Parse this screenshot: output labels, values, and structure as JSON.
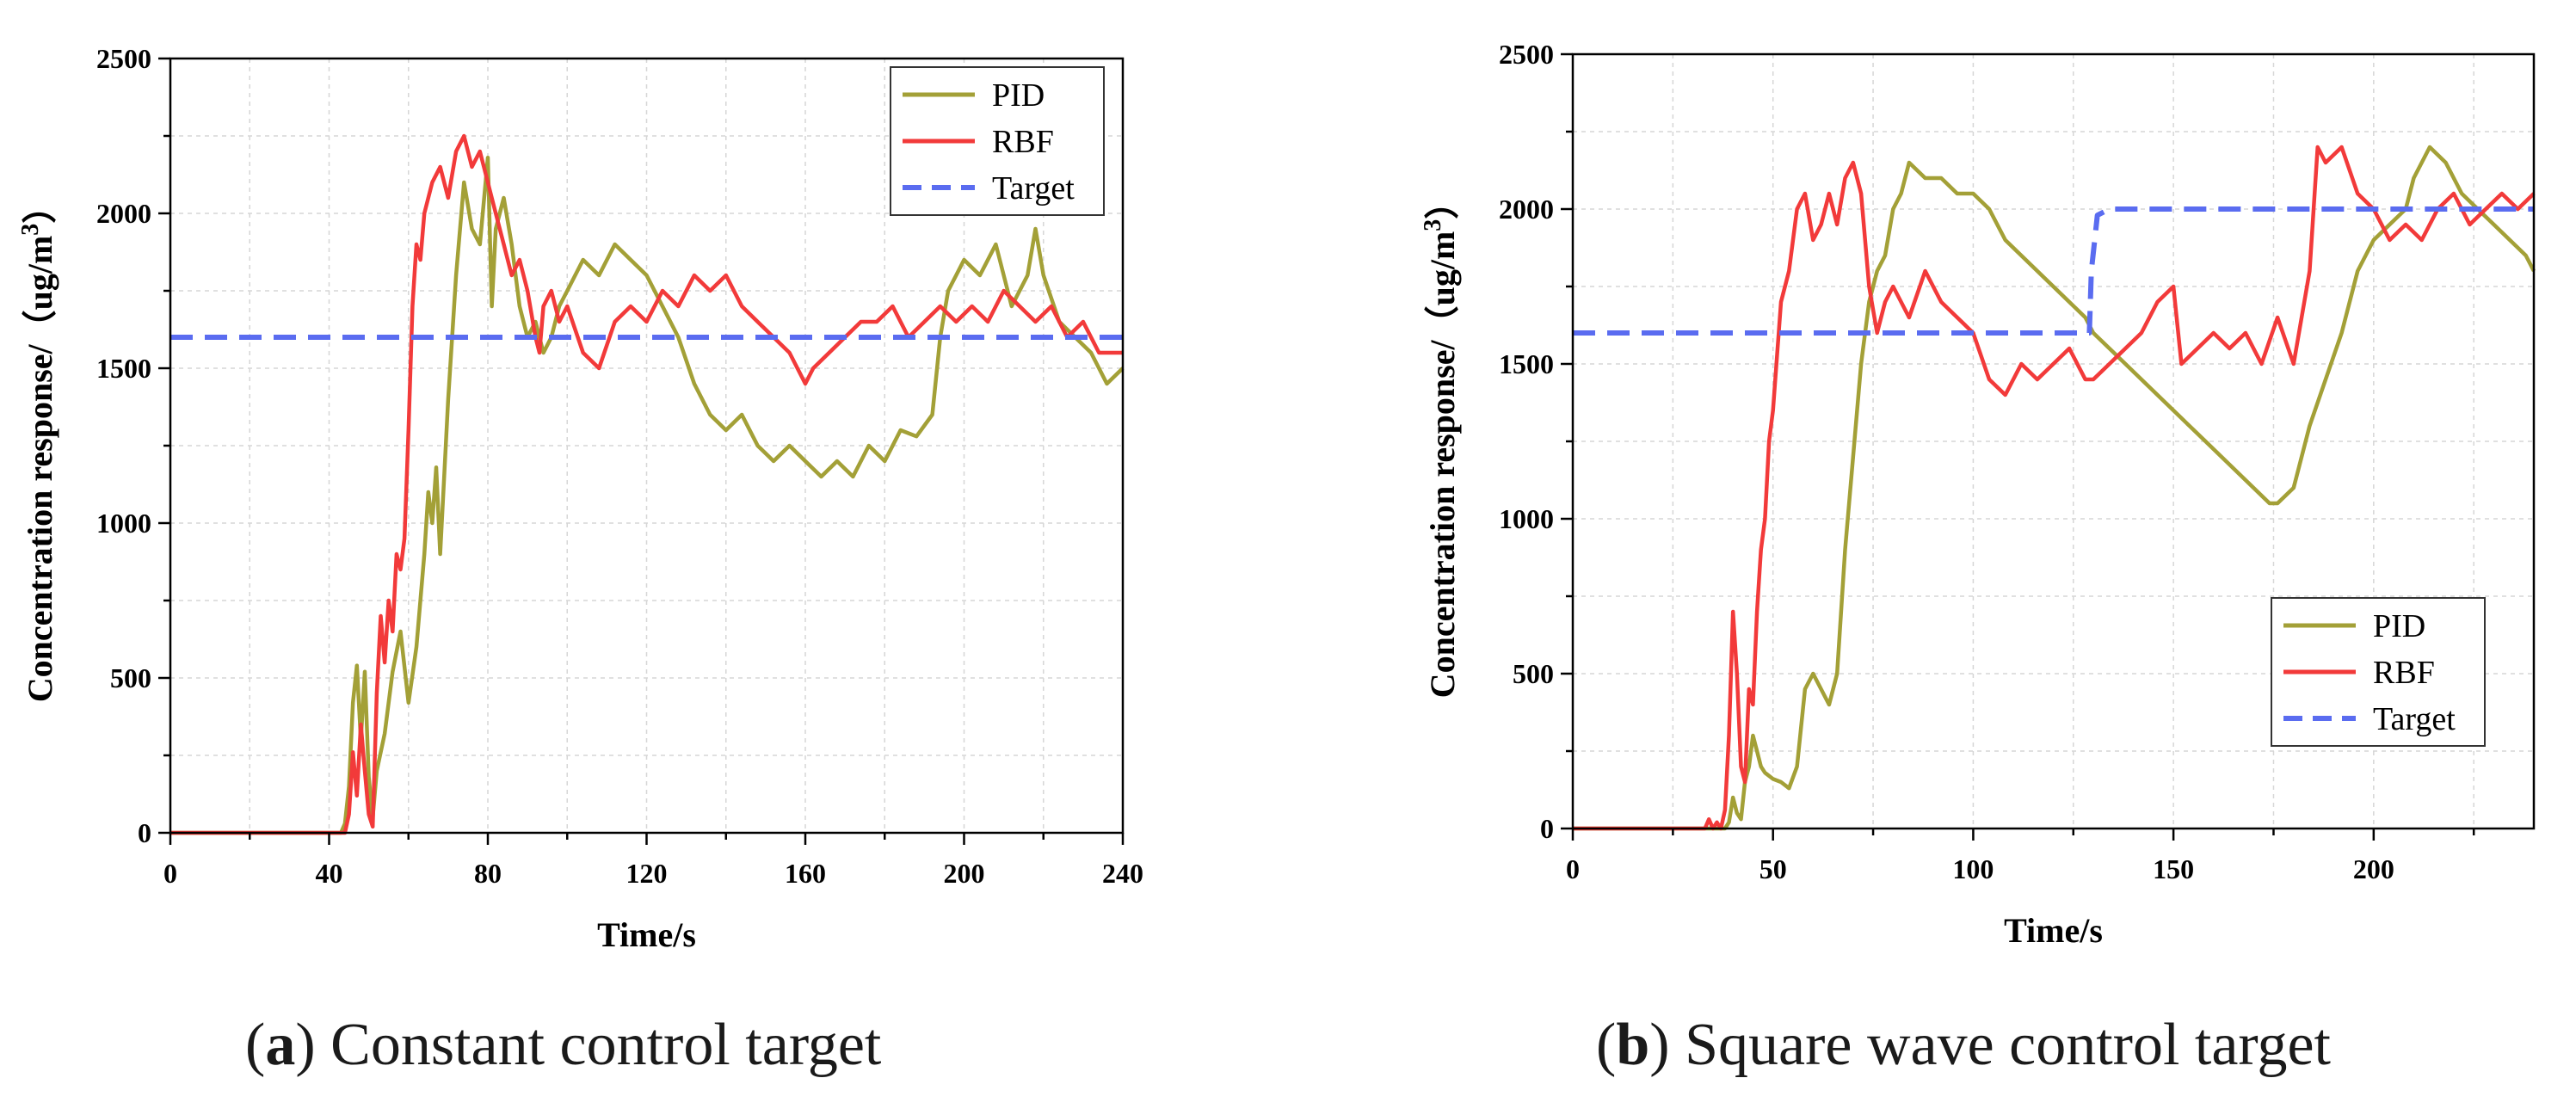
{
  "captions": [
    {
      "letter": "a",
      "open": "(",
      "close": ")",
      "text": " Constant control target"
    },
    {
      "letter": "b",
      "open": "(",
      "close": ")",
      "text": " Square wave control target"
    }
  ],
  "colors": {
    "pid": "#a3a037",
    "rbf": "#f23a3a",
    "target": "#5a6cf0",
    "grid": "#d6d6d6",
    "axis": "#000000"
  },
  "chart_data": [
    {
      "type": "line",
      "title": "",
      "xlabel": "Time/s",
      "ylabel_main": "Concentration response/（ug/m",
      "ylabel_sup": "3",
      "ylabel_end": "）",
      "xlim": [
        0,
        240
      ],
      "ylim": [
        0,
        2500
      ],
      "xticks": [
        0,
        40,
        80,
        120,
        160,
        200,
        240
      ],
      "xtick_labels": [
        "0",
        "40",
        "80",
        "120",
        "160",
        "200",
        "240"
      ],
      "yticks": [
        0,
        500,
        1000,
        1500,
        2000,
        2500
      ],
      "ytick_labels": [
        "0",
        "500",
        "1000",
        "1500",
        "2000",
        "2500"
      ],
      "grid": true,
      "legend_position": "top-right",
      "series": [
        {
          "name": "PID",
          "x": [
            0,
            43,
            44,
            45,
            46,
            47,
            48,
            49,
            50,
            51,
            52,
            54,
            56,
            58,
            60,
            62,
            64,
            65,
            66,
            67,
            68,
            70,
            72,
            74,
            76,
            78,
            80,
            81,
            82,
            84,
            86,
            88,
            90,
            92,
            94,
            96,
            98,
            100,
            104,
            108,
            112,
            116,
            120,
            124,
            128,
            132,
            136,
            140,
            144,
            148,
            152,
            156,
            160,
            164,
            168,
            172,
            176,
            180,
            184,
            188,
            192,
            194,
            196,
            198,
            200,
            204,
            208,
            212,
            216,
            218,
            220,
            224,
            228,
            232,
            236,
            240
          ],
          "y": [
            0,
            0,
            30,
            150,
            420,
            540,
            300,
            520,
            180,
            50,
            200,
            320,
            520,
            650,
            420,
            600,
            900,
            1100,
            1000,
            1180,
            900,
            1400,
            1800,
            2100,
            1950,
            1900,
            2180,
            1700,
            1950,
            2050,
            1900,
            1700,
            1600,
            1650,
            1550,
            1600,
            1700,
            1750,
            1850,
            1800,
            1900,
            1850,
            1800,
            1700,
            1600,
            1450,
            1350,
            1300,
            1350,
            1250,
            1200,
            1250,
            1200,
            1150,
            1200,
            1150,
            1250,
            1200,
            1300,
            1280,
            1350,
            1600,
            1750,
            1800,
            1850,
            1800,
            1900,
            1700,
            1800,
            1950,
            1800,
            1650,
            1600,
            1550,
            1450,
            1500
          ]
        },
        {
          "name": "RBF",
          "x": [
            0,
            44,
            45,
            46,
            47,
            48,
            49,
            50,
            51,
            52,
            53,
            54,
            55,
            56,
            57,
            58,
            59,
            60,
            61,
            62,
            63,
            64,
            66,
            68,
            70,
            72,
            74,
            76,
            78,
            80,
            82,
            84,
            86,
            88,
            90,
            92,
            93,
            94,
            96,
            98,
            100,
            104,
            108,
            112,
            116,
            120,
            124,
            128,
            132,
            136,
            140,
            144,
            148,
            152,
            156,
            160,
            162,
            166,
            170,
            174,
            178,
            182,
            186,
            190,
            194,
            198,
            202,
            206,
            210,
            214,
            218,
            222,
            226,
            230,
            234,
            238,
            240
          ],
          "y": [
            0,
            0,
            60,
            260,
            120,
            350,
            200,
            60,
            20,
            450,
            700,
            550,
            750,
            650,
            900,
            850,
            950,
            1300,
            1700,
            1900,
            1850,
            2000,
            2100,
            2150,
            2050,
            2200,
            2250,
            2150,
            2200,
            2100,
            2000,
            1900,
            1800,
            1850,
            1750,
            1600,
            1550,
            1700,
            1750,
            1650,
            1700,
            1550,
            1500,
            1650,
            1700,
            1650,
            1750,
            1700,
            1800,
            1750,
            1800,
            1700,
            1650,
            1600,
            1550,
            1450,
            1500,
            1550,
            1600,
            1650,
            1650,
            1700,
            1600,
            1650,
            1700,
            1650,
            1700,
            1650,
            1750,
            1700,
            1650,
            1700,
            1600,
            1650,
            1550,
            1550,
            1550
          ]
        },
        {
          "name": "Target",
          "x": [
            0,
            240
          ],
          "y": [
            1600,
            1600
          ]
        }
      ]
    },
    {
      "type": "line",
      "title": "",
      "xlabel": "Time/s",
      "ylabel_main": "Concentration response/（ug/m",
      "ylabel_sup": "3",
      "ylabel_end": "）",
      "xlim": [
        0,
        240
      ],
      "ylim": [
        0,
        2500
      ],
      "xticks": [
        0,
        50,
        100,
        150,
        200
      ],
      "xtick_labels": [
        "0",
        "50",
        "100",
        "150",
        "200"
      ],
      "yticks": [
        0,
        500,
        1000,
        1500,
        2000,
        2500
      ],
      "ytick_labels": [
        "0",
        "500",
        "1000",
        "1500",
        "2000",
        "2500"
      ],
      "grid": true,
      "legend_position": "bottom-right",
      "series": [
        {
          "name": "PID",
          "x": [
            0,
            38,
            39,
            40,
            41,
            42,
            43,
            44,
            45,
            46,
            47,
            48,
            50,
            52,
            54,
            56,
            58,
            60,
            62,
            64,
            66,
            68,
            70,
            72,
            74,
            76,
            78,
            80,
            82,
            84,
            88,
            92,
            96,
            100,
            104,
            108,
            112,
            116,
            120,
            124,
            128,
            130,
            134,
            138,
            142,
            146,
            150,
            154,
            158,
            162,
            166,
            170,
            174,
            176,
            180,
            184,
            188,
            192,
            196,
            200,
            204,
            208,
            210,
            214,
            218,
            222,
            226,
            230,
            234,
            238,
            240
          ],
          "y": [
            0,
            0,
            20,
            100,
            50,
            30,
            150,
            200,
            300,
            250,
            200,
            180,
            160,
            150,
            130,
            200,
            450,
            500,
            450,
            400,
            500,
            900,
            1200,
            1500,
            1700,
            1800,
            1850,
            2000,
            2050,
            2150,
            2100,
            2100,
            2050,
            2050,
            2000,
            1900,
            1850,
            1800,
            1750,
            1700,
            1650,
            1600,
            1550,
            1500,
            1450,
            1400,
            1350,
            1300,
            1250,
            1200,
            1150,
            1100,
            1050,
            1050,
            1100,
            1300,
            1450,
            1600,
            1800,
            1900,
            1950,
            2000,
            2100,
            2200,
            2150,
            2050,
            2000,
            1950,
            1900,
            1850,
            1800
          ]
        },
        {
          "name": "RBF",
          "x": [
            0,
            33,
            34,
            35,
            36,
            37,
            38,
            39,
            40,
            41,
            42,
            43,
            44,
            45,
            46,
            47,
            48,
            49,
            50,
            52,
            54,
            56,
            58,
            60,
            62,
            64,
            66,
            68,
            70,
            72,
            74,
            76,
            78,
            80,
            84,
            88,
            92,
            96,
            100,
            104,
            108,
            112,
            116,
            120,
            124,
            128,
            130,
            134,
            138,
            142,
            146,
            150,
            152,
            156,
            160,
            164,
            168,
            172,
            176,
            180,
            184,
            186,
            188,
            192,
            196,
            200,
            204,
            208,
            212,
            216,
            220,
            224,
            228,
            232,
            236,
            240
          ],
          "y": [
            0,
            0,
            30,
            0,
            20,
            0,
            60,
            300,
            700,
            500,
            200,
            150,
            450,
            400,
            700,
            900,
            1000,
            1250,
            1350,
            1700,
            1800,
            2000,
            2050,
            1900,
            1950,
            2050,
            1950,
            2100,
            2150,
            2050,
            1750,
            1600,
            1700,
            1750,
            1650,
            1800,
            1700,
            1650,
            1600,
            1450,
            1400,
            1500,
            1450,
            1500,
            1550,
            1450,
            1450,
            1500,
            1550,
            1600,
            1700,
            1750,
            1500,
            1550,
            1600,
            1550,
            1600,
            1500,
            1650,
            1500,
            1800,
            2200,
            2150,
            2200,
            2050,
            2000,
            1900,
            1950,
            1900,
            2000,
            2050,
            1950,
            2000,
            2050,
            2000,
            2050
          ]
        },
        {
          "name": "Target",
          "x": [
            0,
            129,
            129.5,
            131,
            134,
            240
          ],
          "y": [
            1600,
            1600,
            1800,
            1980,
            2000,
            2000
          ]
        }
      ]
    }
  ]
}
